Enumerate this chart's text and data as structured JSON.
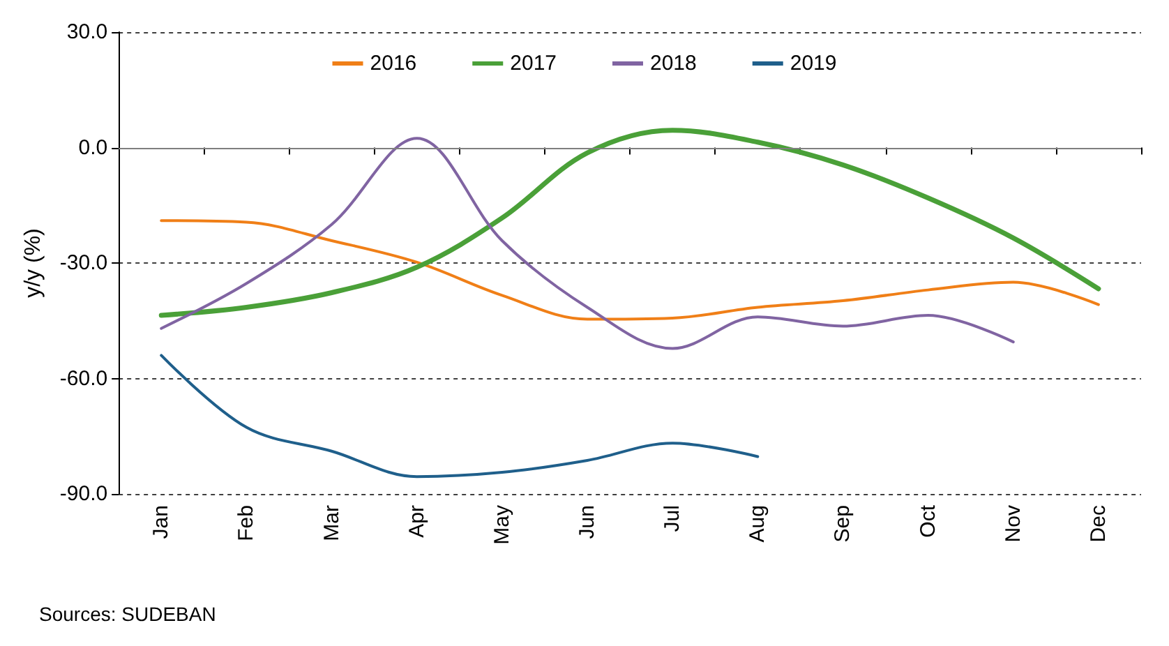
{
  "chart_data": {
    "type": "line",
    "ylabel": "y/y (%)",
    "categories": [
      "Jan",
      "Feb",
      "Mar",
      "Apr",
      "May",
      "Jun",
      "Jul",
      "Aug",
      "Sep",
      "Oct",
      "Nov",
      "Dec"
    ],
    "series": [
      {
        "name": "2016",
        "color": "#f07f17",
        "values": [
          -19.0,
          -19.4,
          -24.2,
          -29.8,
          -38.4,
          -44.6,
          -44.3,
          -41.5,
          -39.8,
          -37.0,
          -35.0,
          -40.8
        ]
      },
      {
        "name": "2017",
        "color": "#4aa038",
        "values": [
          -43.6,
          -41.5,
          -37.7,
          -31.1,
          -18.3,
          -1.4,
          4.5,
          1.4,
          -4.5,
          -13.1,
          -23.5,
          -36.7
        ]
      },
      {
        "name": "2018",
        "color": "#8064a2",
        "values": [
          -47.0,
          -35.3,
          -20.0,
          2.4,
          -24.2,
          -41.5,
          -52.2,
          -44.0,
          -46.4,
          -43.6,
          -50.5,
          null
        ]
      },
      {
        "name": "2019",
        "color": "#1f5f8b",
        "values": [
          -54.0,
          -72.7,
          -78.9,
          -85.5,
          -84.4,
          -81.3,
          -76.8,
          -80.3,
          null,
          null,
          null,
          null
        ]
      }
    ],
    "ylim": [
      -90,
      30
    ],
    "yticks": [
      {
        "value": -90,
        "label": "-90.0"
      },
      {
        "value": -60,
        "label": "-60.0"
      },
      {
        "value": -30,
        "label": "-30.0"
      },
      {
        "value": 0,
        "label": "0.0"
      },
      {
        "value": 30,
        "label": "30.0"
      }
    ],
    "grid": "y",
    "legend": "top",
    "marker": "none",
    "line_style": "solid",
    "ref_lines": [
      {
        "axis": "y",
        "value": 0,
        "label": null,
        "color": "#7f7f7f",
        "line_style": "solid"
      }
    ],
    "annotations": [
      "Sources: SUDEBAN"
    ]
  }
}
